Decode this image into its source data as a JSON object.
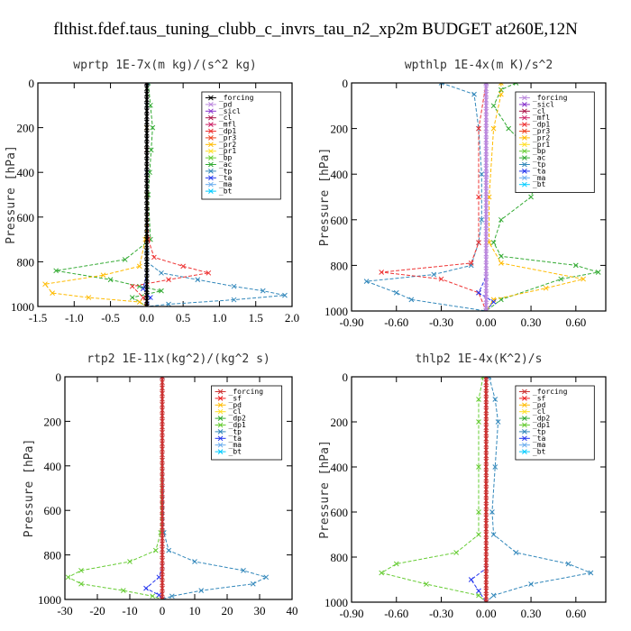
{
  "figure": {
    "title": "flthist.fdef.taus_tuning_clubb_c_invrs_tau_n2_xp2m  BUDGET at260E,12N"
  },
  "chart_data": [
    {
      "type": "line",
      "title": "wprtp  1E-7x(m kg)/(s^2 kg)",
      "ylabel": "Pressure [hPa]",
      "xlim": [
        -1.5,
        2.0
      ],
      "ylim": [
        1000,
        0
      ],
      "xticks": [
        -1.5,
        -1.0,
        -0.5,
        0.0,
        0.5,
        1.0,
        1.5,
        2.0
      ],
      "xtick_labels": [
        "-1.5",
        "-1.0",
        "-0.5",
        "0.0",
        "0.5",
        "1.0",
        "1.5",
        "2.0"
      ],
      "yticks": [
        0,
        200,
        400,
        600,
        800,
        1000
      ],
      "ytick_labels": [
        "0",
        "200",
        "400",
        "600",
        "800",
        "1000"
      ],
      "legend": [
        "_forcing",
        "_pd",
        "_sicl",
        "_cl",
        "_mfl",
        "_dp1",
        "_pr3",
        "_pr2",
        "_pr1",
        "_bp",
        "_ac",
        "_tp",
        "_ta",
        "_ma",
        "_bt"
      ],
      "legend_colors": [
        "#000000",
        "#bb88dd",
        "#8833cc",
        "#aa1144",
        "#cc2266",
        "#ee3333",
        "#ee4422",
        "#ffbb00",
        "#ffdd22",
        "#66cc33",
        "#33aa33",
        "#3388bb",
        "#2233ee",
        "#66aaee",
        "#00ccff"
      ],
      "series": [
        {
          "color": "#33aa33",
          "x": [
            0.02,
            0.05,
            0.08,
            0.06,
            0.04,
            0.02,
            0.05,
            -0.3,
            -1.25,
            -0.5,
            -0.1,
            0.2,
            -0.2,
            0.0
          ],
          "y": [
            0,
            100,
            200,
            300,
            400,
            500,
            700,
            790,
            840,
            880,
            910,
            930,
            960,
            1000
          ]
        },
        {
          "color": "#3388bb",
          "x": [
            0.01,
            0.0,
            0.0,
            0.0,
            0.0,
            0.0,
            0.0,
            0.2,
            0.7,
            1.2,
            1.6,
            1.9,
            1.2,
            0.3,
            0.0
          ],
          "y": [
            0,
            100,
            300,
            500,
            700,
            760,
            800,
            850,
            880,
            910,
            930,
            950,
            970,
            990,
            1000
          ]
        },
        {
          "color": "#ffbb00",
          "x": [
            0.0,
            0.0,
            0.0,
            -0.02,
            -0.1,
            -0.6,
            -1.4,
            -1.3,
            -0.8,
            -0.1,
            0.0
          ],
          "y": [
            0,
            200,
            500,
            700,
            820,
            860,
            900,
            940,
            960,
            980,
            1000
          ]
        },
        {
          "color": "#ee3333",
          "x": [
            0.0,
            0.0,
            0.02,
            0.1,
            0.5,
            0.85,
            0.3,
            -0.2,
            -0.05,
            0.0
          ],
          "y": [
            0,
            300,
            700,
            780,
            820,
            850,
            880,
            910,
            960,
            1000
          ]
        },
        {
          "color": "#2233ee",
          "x": [
            0.0,
            0.0,
            0.0,
            -0.05,
            0.05,
            0.0
          ],
          "y": [
            0,
            400,
            850,
            920,
            960,
            1000
          ]
        },
        {
          "color": "#000000",
          "x": [
            0.0,
            0.0
          ],
          "y": [
            0,
            1000
          ]
        }
      ]
    },
    {
      "type": "line",
      "title": "wpthlp  1E-4x(m K)/s^2",
      "ylabel": "Pressure [hPa]",
      "xlim": [
        -0.9,
        0.8
      ],
      "ylim": [
        1000,
        0
      ],
      "xticks": [
        -0.9,
        -0.6,
        -0.3,
        0.0,
        0.3,
        0.6
      ],
      "xtick_labels": [
        "-0.90",
        "-0.60",
        "-0.30",
        "0.00",
        "0.30",
        "0.60"
      ],
      "yticks": [
        0,
        200,
        400,
        600,
        800,
        1000
      ],
      "ytick_labels": [
        "0",
        "200",
        "400",
        "600",
        "800",
        "1000"
      ],
      "legend": [
        "_forcing",
        "_sicl",
        "_cl",
        "_mfl",
        "_dp1",
        "_pr3",
        "_pr2",
        "_pr1",
        "_bp",
        "_ac",
        "_tp",
        "_ta",
        "_ma",
        "_bt"
      ],
      "legend_colors": [
        "#bb88dd",
        "#8833cc",
        "#aa1144",
        "#cc2266",
        "#ee3333",
        "#ee4422",
        "#ffbb00",
        "#ffdd22",
        "#66cc33",
        "#33aa33",
        "#3388bb",
        "#2233ee",
        "#66aaee",
        "#00ccff"
      ],
      "series": [
        {
          "color": "#33aa33",
          "x": [
            0.2,
            0.1,
            0.05,
            0.15,
            0.3,
            0.35,
            0.3,
            0.1,
            0.05,
            0.1,
            0.6,
            0.75,
            0.5,
            0.1,
            0.0
          ],
          "y": [
            0,
            30,
            100,
            200,
            300,
            400,
            500,
            600,
            700,
            760,
            800,
            830,
            860,
            950,
            1000
          ]
        },
        {
          "color": "#3388bb",
          "x": [
            -0.3,
            -0.08,
            -0.05,
            -0.03,
            -0.03,
            -0.05,
            -0.1,
            -0.35,
            -0.8,
            -0.6,
            -0.5,
            0.0
          ],
          "y": [
            0,
            50,
            200,
            400,
            600,
            700,
            800,
            840,
            870,
            920,
            950,
            1000
          ]
        },
        {
          "color": "#ee3333",
          "x": [
            0.0,
            -0.05,
            -0.05,
            -0.05,
            -0.1,
            -0.7,
            -0.3,
            -0.05,
            0.0
          ],
          "y": [
            0,
            200,
            500,
            700,
            790,
            830,
            860,
            920,
            1000
          ]
        },
        {
          "color": "#ffbb00",
          "x": [
            0.1,
            0.1,
            0.05,
            0.02,
            0.02,
            0.1,
            0.65,
            0.4,
            0.05,
            0.0
          ],
          "y": [
            0,
            50,
            200,
            500,
            700,
            790,
            860,
            900,
            950,
            1000
          ]
        },
        {
          "color": "#2233ee",
          "x": [
            0.0,
            0.0,
            0.0,
            -0.05,
            0.05,
            0.0
          ],
          "y": [
            0,
            400,
            850,
            920,
            960,
            1000
          ]
        },
        {
          "color": "#bb88dd",
          "x": [
            0.0,
            0.0
          ],
          "y": [
            0,
            1000
          ]
        }
      ]
    },
    {
      "type": "line",
      "title": "rtp2  1E-11x(kg^2)/(kg^2 s)",
      "ylabel": "Pressure [hPa]",
      "xlim": [
        -30,
        40
      ],
      "ylim": [
        1000,
        0
      ],
      "xticks": [
        -30,
        -20,
        -10,
        0,
        10,
        20,
        30,
        40
      ],
      "xtick_labels": [
        "-30",
        "-20",
        "-10",
        "0",
        "10",
        "20",
        "30",
        "40"
      ],
      "yticks": [
        0,
        200,
        400,
        600,
        800,
        1000
      ],
      "ytick_labels": [
        "0",
        "200",
        "400",
        "600",
        "800",
        "1000"
      ],
      "legend": [
        "_forcing",
        "_sf",
        "_pd",
        "_cl",
        "_dp2",
        "_dp1",
        "_tp",
        "_ta",
        "_ma",
        "_bt"
      ],
      "legend_colors": [
        "#cc3333",
        "#ee2222",
        "#ffbb00",
        "#ffdd22",
        "#33aa33",
        "#66cc33",
        "#3388bb",
        "#2233ee",
        "#66aaee",
        "#00ccff"
      ],
      "series": [
        {
          "color": "#66cc33",
          "x": [
            0.0,
            -0.5,
            -2,
            -10,
            -25,
            -29,
            -25,
            -12,
            -3,
            0.0
          ],
          "y": [
            0,
            700,
            780,
            830,
            870,
            900,
            930,
            960,
            985,
            1000
          ]
        },
        {
          "color": "#3388bb",
          "x": [
            0.0,
            0.5,
            2,
            10,
            25,
            32,
            28,
            12,
            3,
            0.0
          ],
          "y": [
            0,
            700,
            780,
            830,
            870,
            900,
            930,
            960,
            985,
            1000
          ]
        },
        {
          "color": "#2233ee",
          "x": [
            0.0,
            0.0,
            -1,
            -5,
            -1,
            0.0
          ],
          "y": [
            0,
            850,
            900,
            950,
            980,
            1000
          ]
        },
        {
          "color": "#cc3333",
          "x": [
            0.0,
            0.0
          ],
          "y": [
            0,
            1000
          ]
        }
      ]
    },
    {
      "type": "line",
      "title": "thlp2  1E-4x(K^2)/s",
      "ylabel": "Pressure [hPa]",
      "xlim": [
        -0.9,
        0.8
      ],
      "ylim": [
        1000,
        0
      ],
      "xticks": [
        -0.9,
        -0.6,
        -0.3,
        0.0,
        0.3,
        0.6
      ],
      "xtick_labels": [
        "-0.90",
        "-0.60",
        "-0.30",
        "0.00",
        "0.30",
        "0.60"
      ],
      "yticks": [
        0,
        200,
        400,
        600,
        800,
        1000
      ],
      "ytick_labels": [
        "0",
        "200",
        "400",
        "600",
        "800",
        "1000"
      ],
      "legend": [
        "_forcing",
        "_sf",
        "_pd",
        "_cl",
        "_dp2",
        "_dp1",
        "_tp",
        "_ta",
        "_ma",
        "_bt"
      ],
      "legend_colors": [
        "#cc3333",
        "#ee2222",
        "#ffbb00",
        "#ffdd22",
        "#33aa33",
        "#66cc33",
        "#3388bb",
        "#2233ee",
        "#66aaee",
        "#00ccff"
      ],
      "series": [
        {
          "color": "#66cc33",
          "x": [
            -0.02,
            -0.05,
            -0.05,
            -0.05,
            -0.05,
            -0.05,
            -0.2,
            -0.6,
            -0.7,
            -0.4,
            -0.05,
            0.0
          ],
          "y": [
            0,
            100,
            200,
            400,
            600,
            700,
            780,
            830,
            870,
            920,
            970,
            1000
          ]
        },
        {
          "color": "#3388bb",
          "x": [
            0.02,
            0.06,
            0.08,
            0.06,
            0.04,
            0.05,
            0.2,
            0.55,
            0.7,
            0.3,
            0.05,
            0.0
          ],
          "y": [
            0,
            100,
            200,
            400,
            600,
            700,
            780,
            830,
            870,
            920,
            970,
            1000
          ]
        },
        {
          "color": "#2233ee",
          "x": [
            0.0,
            0.0,
            -0.1,
            -0.05,
            0.0
          ],
          "y": [
            0,
            850,
            900,
            950,
            1000
          ]
        },
        {
          "color": "#cc3333",
          "x": [
            0.0,
            0.0
          ],
          "y": [
            0,
            1000
          ]
        }
      ]
    }
  ]
}
